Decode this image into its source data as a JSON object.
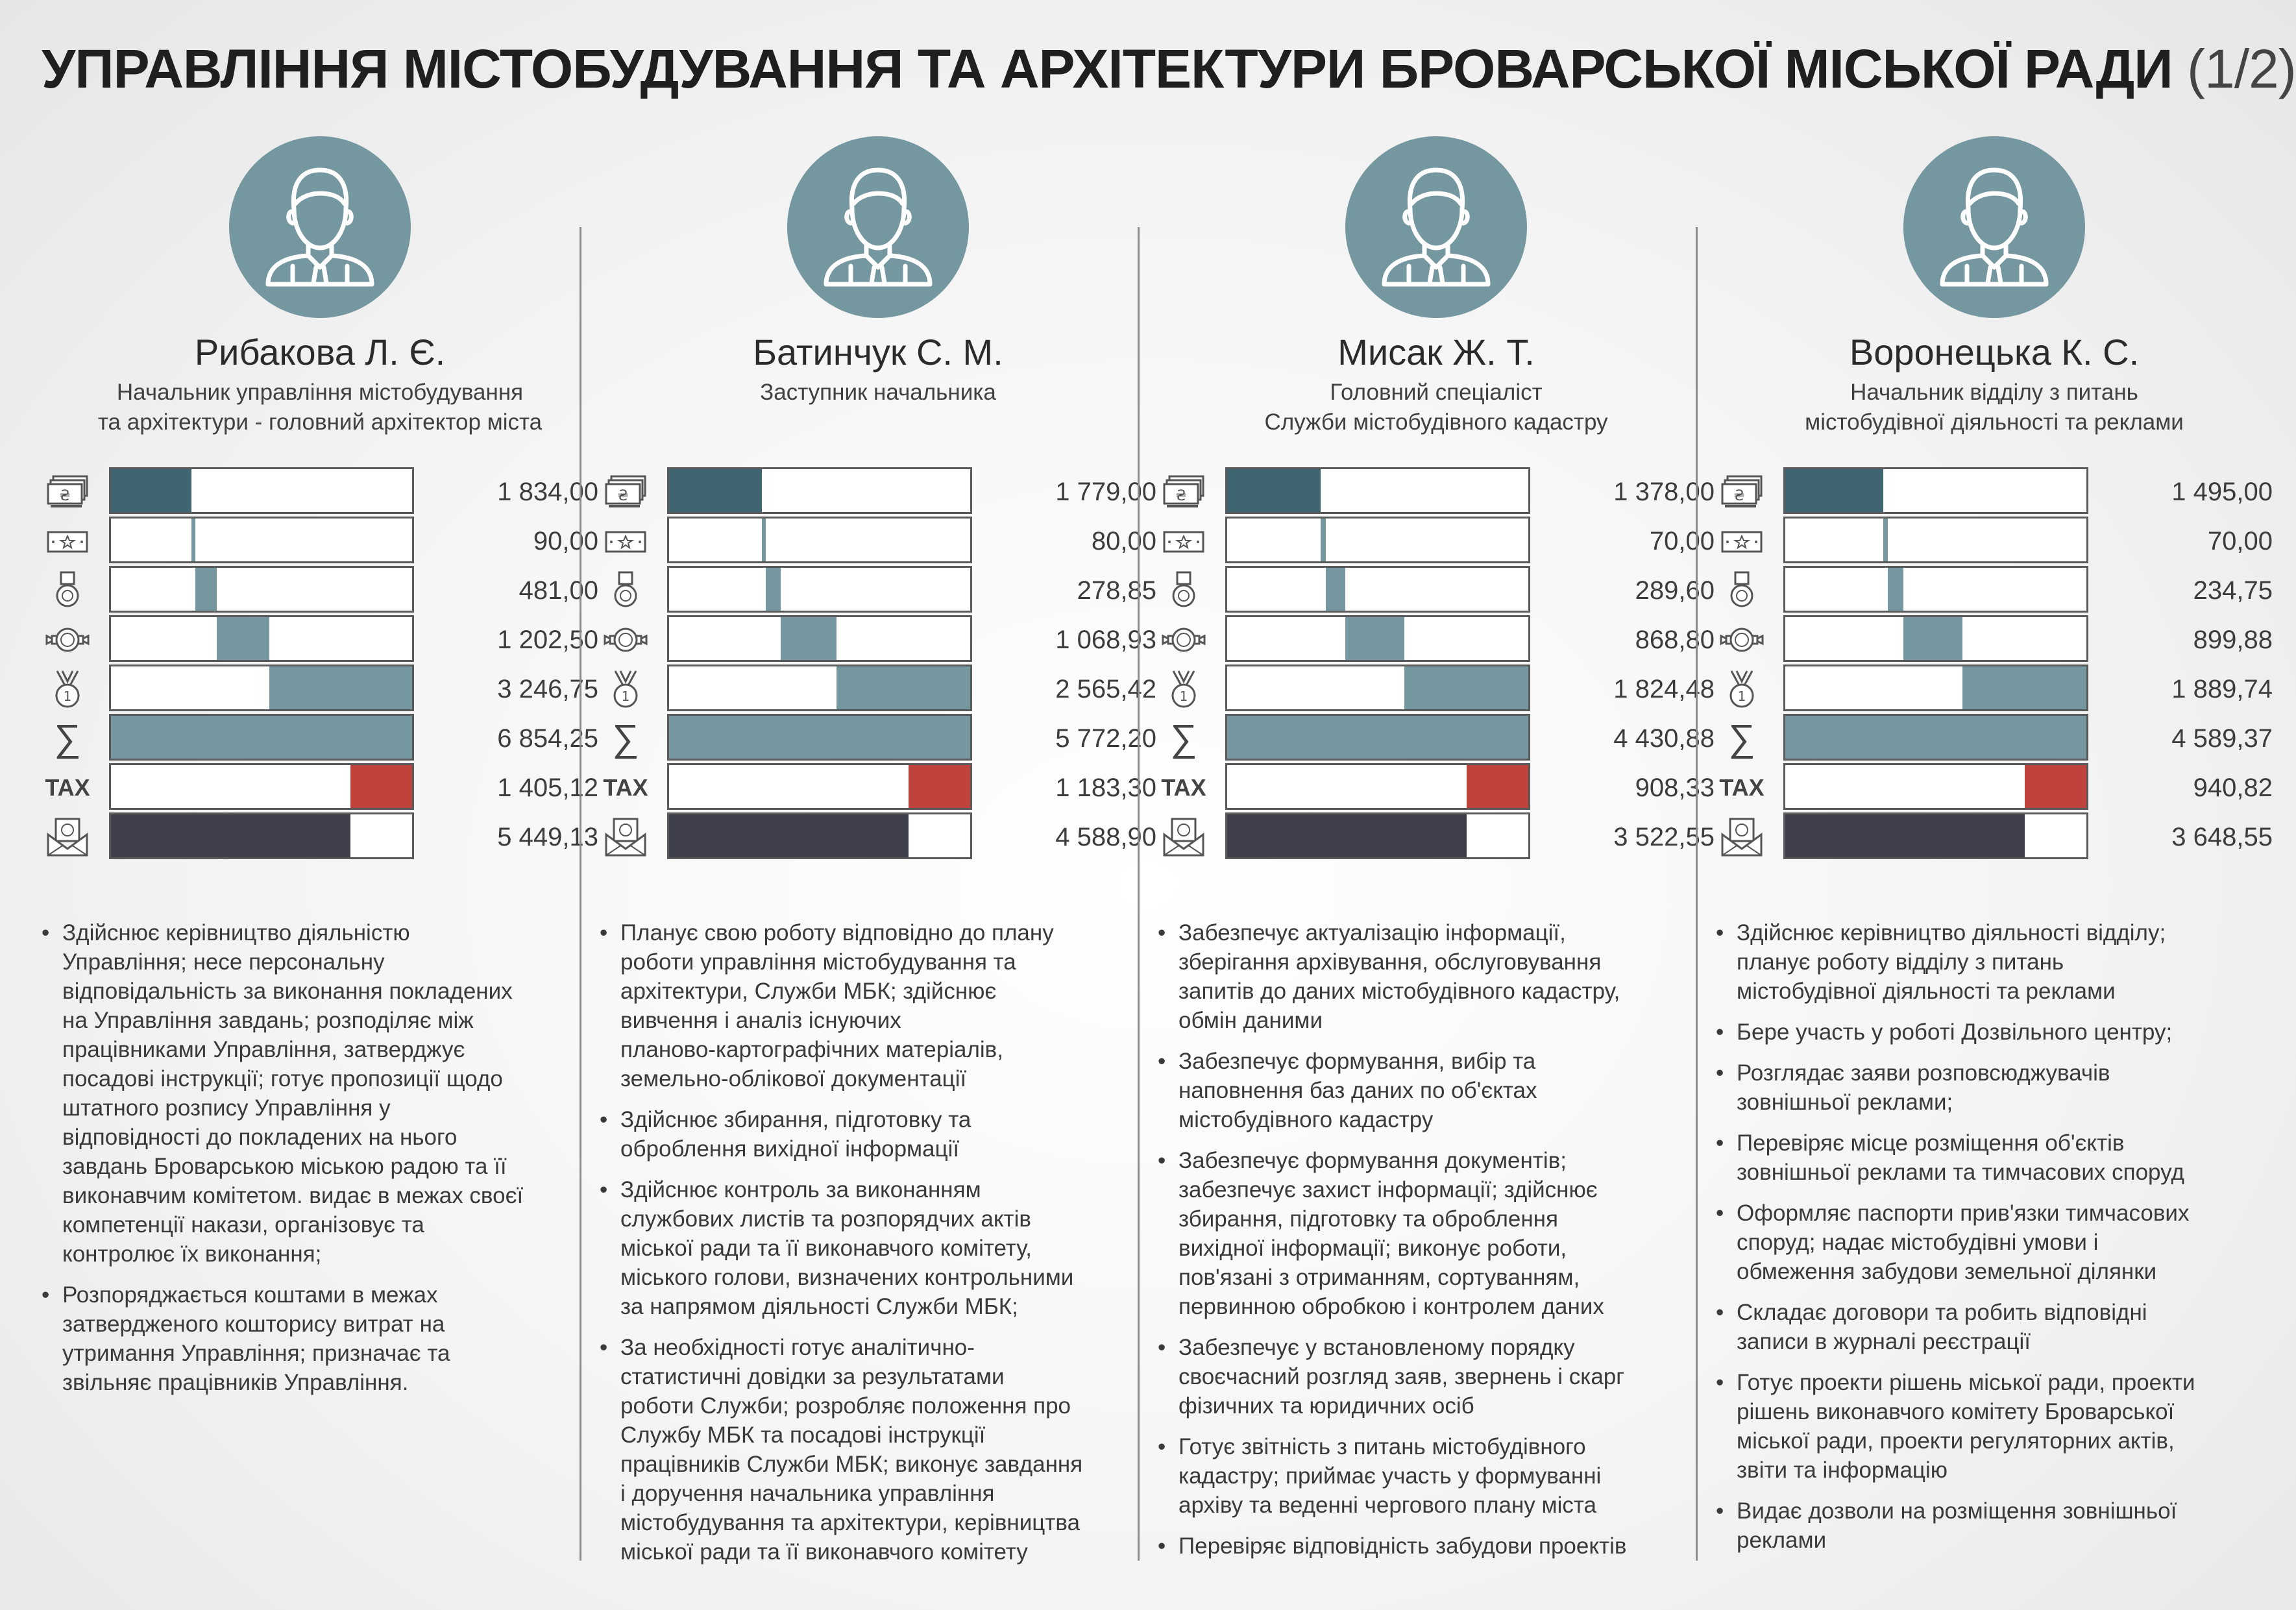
{
  "title": "УПРАВЛІННЯ МІСТОБУДУВАННЯ ТА АРХІТЕКТУРИ БРОВАРСЬКОЇ МІСЬКОЇ РАДИ",
  "title_suffix": "(1/2)",
  "colors": {
    "dark_teal": "#3f6570",
    "teal": "#7497a0",
    "red": "#c0433b",
    "dark": "#3e3f4b",
    "border": "#5a5a5a"
  },
  "icons": [
    "money-stack-icon",
    "star-bill-icon",
    "medal-icon",
    "badge-ribbon-icon",
    "award-medal-icon",
    "sum-icon",
    "tax-icon",
    "money-envelope-icon"
  ],
  "chart_data": {
    "type": "bar",
    "categories": [
      "",
      "",
      "",
      "",
      "",
      "",
      "TAX",
      ""
    ],
    "people": [
      {
        "name": "Рибакова Л. Є.",
        "role": [
          "Начальник управління містобудування",
          "та архітектури - головний архітектор міста"
        ],
        "values": [
          1834.0,
          90.0,
          481.0,
          1202.5,
          3246.75,
          6854.25,
          1405.12,
          5449.13
        ],
        "labels": [
          "1 834,00",
          "90,00",
          "481,00",
          "1 202,50",
          "3 246,75",
          "6 854,25",
          "1 405,12",
          "5 449,13"
        ],
        "duties": [
          [
            "Здійснює керівництво діяльністю",
            "Управління; несе персональну",
            "відповідальність за виконання покладених",
            "на Управління завдань; розподіляє між",
            "працівниками Управління, затверджує",
            "посадові інструкції; готує пропозиції щодо",
            "штатного розпису Управління у",
            "відповідності до покладених на нього",
            "завдань Броварською міською радою та її",
            "виконавчим комітетом. видає в межах своєї",
            "компетенції накази, організовує та",
            "контролює їх виконання;"
          ],
          [
            "Розпоряджається коштами в межах",
            "затвердженого кошторису витрат на",
            "утримання Управління; призначає та",
            "звільняє працівників Управління."
          ]
        ]
      },
      {
        "name": "Батинчук С. М.",
        "role": [
          "Заступник начальника"
        ],
        "values": [
          1779.0,
          80.0,
          278.85,
          1068.93,
          2565.42,
          5772.2,
          1183.3,
          4588.9
        ],
        "labels": [
          "1 779,00",
          "80,00",
          "278,85",
          "1 068,93",
          "2 565,42",
          "5 772,20",
          "1 183,30",
          "4 588,90"
        ],
        "duties": [
          [
            "Планує свою роботу відповідно до плану",
            "роботи управління містобудування та",
            "архітектури, Служби МБК; здійснює",
            "вивчення і аналіз існуючих",
            "планово-картографічних матеріалів,",
            "земельно-облікової документації"
          ],
          [
            "Здійснює збирання, підготовку та",
            "оброблення вихідної інформації"
          ],
          [
            "Здійснює контроль за виконанням",
            "службових листів та розпорядчих актів",
            "міської ради та її виконавчого комітету,",
            "міського голови, визначених контрольними",
            "за напрямом діяльності Служби МБК;"
          ],
          [
            "За необхідності готує аналітично-",
            "статистичні довідки за результатами",
            "роботи Служби; розробляє положення про",
            "Службу МБК та посадові інструкції",
            "працівників Служби МБК; виконує завдання",
            "і доручення начальника управління",
            "містобудування та архітектури, керівництва",
            "міської ради та її виконавчого комітету"
          ]
        ]
      },
      {
        "name": "Мисак Ж. Т.",
        "role": [
          "Головний спеціаліст",
          "Служби містобудівного кадастру"
        ],
        "values": [
          1378.0,
          70.0,
          289.6,
          868.8,
          1824.48,
          4430.88,
          908.33,
          3522.55
        ],
        "labels": [
          "1 378,00",
          "70,00",
          "289,60",
          "868,80",
          "1 824,48",
          "4 430,88",
          "908,33",
          "3 522,55"
        ],
        "duties": [
          [
            "Забезпечує актуалізацію інформації,",
            "зберігання архівування, обслуговування",
            "запитів до даних містобудівного кадастру,",
            "обмін даними"
          ],
          [
            "Забезпечує формування, вибір та",
            "наповнення баз даних по об'єктах",
            "містобудівного кадастру"
          ],
          [
            "Забезпечує формування документів;",
            "забезпечує захист інформації; здійснює",
            "збирання, підготовку та оброблення",
            "вихідної інформації; виконує роботи,",
            "пов'язані з отриманням, сортуванням,",
            "первинною обробкою і контролем даних"
          ],
          [
            "Забезпечує у встановленому порядку",
            "своєчасний розгляд заяв, звернень і скарг",
            "фізичних та юридичних осіб"
          ],
          [
            "Готує звітність з питань містобудівного",
            "кадастру; приймає участь у формуванні",
            "архіву та веденні чергового плану міста"
          ],
          [
            "Перевіряє відповідність забудови проектів"
          ]
        ]
      },
      {
        "name": "Воронецька К. С.",
        "role": [
          "Начальник відділу з питань",
          "містобудівної діяльності та реклами"
        ],
        "values": [
          1495.0,
          70.0,
          234.75,
          899.88,
          1889.74,
          4589.37,
          940.82,
          3648.55
        ],
        "labels": [
          "1 495,00",
          "70,00",
          "234,75",
          "899,88",
          "1 889,74",
          "4 589,37",
          "940,82",
          "3 648,55"
        ],
        "duties": [
          [
            "Здійснює керівництво діяльності відділу;",
            "планує роботу відділу з питань",
            "містобудівної діяльності та реклами"
          ],
          [
            "Бере участь у роботі Дозвільного центру;"
          ],
          [
            "Розглядає заяви розповсюджувачів",
            "зовнішньої реклами;"
          ],
          [
            "Перевіряє місце розміщення об'єктів",
            "зовнішньої реклами та тимчасових споруд"
          ],
          [
            "Оформляє паспорти прив'язки тимчасових",
            "споруд; надає містобудівні умови і",
            "обмеження забудови земельної ділянки"
          ],
          [
            "Складає договори та робить відповідні",
            "записи в журналі реєстрації"
          ],
          [
            "Готує проекти рішень міської ради, проекти",
            "рішень виконавчого комітету Броварської",
            "міської ради, проекти регуляторних актів,",
            "звіти та інформацію"
          ],
          [
            "Видає дозволи на розміщення зовнішньої",
            "реклами"
          ]
        ]
      }
    ]
  }
}
